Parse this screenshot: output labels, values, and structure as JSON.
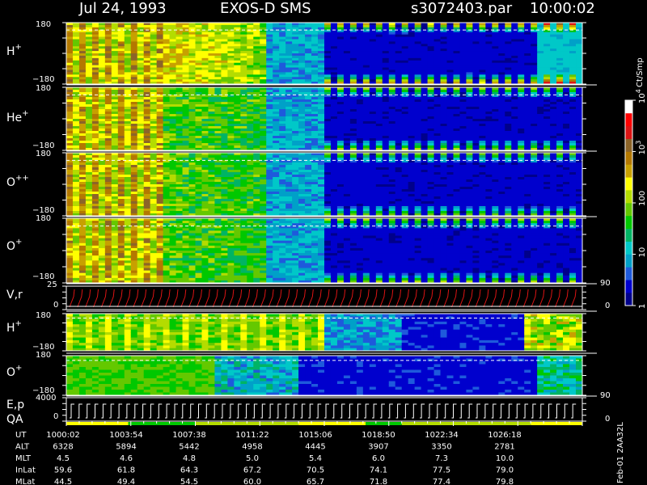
{
  "header": {
    "date": "Jul 24, 1993",
    "instrument": "EXOS-D SMS",
    "file": "s3072403.par",
    "time": "10:00:02"
  },
  "panels": {
    "p1": {
      "label": "H",
      "sup": "+",
      "ytop": "180",
      "ybot": "−180"
    },
    "p2": {
      "label": "He",
      "sup": "+",
      "ytop": "180",
      "ybot": "−180"
    },
    "p3": {
      "label": "O",
      "sup": "++",
      "ytop": "180",
      "ybot": "−180"
    },
    "p4": {
      "label": "O",
      "sup": "+",
      "ytop": "180",
      "ybot": "−180"
    },
    "p5": {
      "label": "V,r",
      "ytop": "25",
      "ybot": "0",
      "right_top": "90",
      "right_bot": "0"
    },
    "p6": {
      "label": "H",
      "sup": "+",
      "ytop": "180",
      "ybot": "−180"
    },
    "p7": {
      "label": "O",
      "sup": "+",
      "ytop": "180",
      "ybot": "−180"
    },
    "p8": {
      "label1": "E,p",
      "label2": "QA",
      "ytop": "4000",
      "ybot": "0",
      "right_top": "90",
      "right_bot": "0"
    }
  },
  "colorbar": {
    "unit": "Ct/Smp",
    "ticks": [
      {
        "base": "1",
        "exp": "",
        "frac": 0.0
      },
      {
        "base": "10",
        "exp": "",
        "frac": 0.25
      },
      {
        "base": "100",
        "exp": "",
        "frac": 0.5
      },
      {
        "base": "10",
        "exp": "3",
        "frac": 0.75
      },
      {
        "base": "10",
        "exp": "4",
        "frac": 1.0
      }
    ],
    "colors": [
      "#00008b",
      "#0000cd",
      "#1e5adc",
      "#00a0c8",
      "#00c8c8",
      "#00b464",
      "#00c800",
      "#64c800",
      "#b4dc00",
      "#ffff00",
      "#c8a000",
      "#b47800",
      "#8c6428",
      "#dc1414",
      "#ff0000",
      "#ffffff"
    ]
  },
  "footer": {
    "side_label": "Feb-01 2AA32L",
    "rows": [
      {
        "name": "UT",
        "values": [
          "1000:02",
          "1003:54",
          "1007:38",
          "1011:22",
          "1015:06",
          "1018:50",
          "1022:34",
          "1026:18"
        ]
      },
      {
        "name": "ALT",
        "values": [
          "6328",
          "5894",
          "5442",
          "4958",
          "4445",
          "3907",
          "3350",
          "2781"
        ]
      },
      {
        "name": "MLT",
        "values": [
          "4.5",
          "4.6",
          "4.8",
          "5.0",
          "5.4",
          "6.0",
          "7.3",
          "10.0"
        ]
      },
      {
        "name": "InLat",
        "values": [
          "59.6",
          "61.8",
          "64.3",
          "67.2",
          "70.5",
          "74.1",
          "77.5",
          "79.0"
        ]
      },
      {
        "name": "MLat",
        "values": [
          "44.5",
          "49.4",
          "54.5",
          "60.0",
          "65.7",
          "71.8",
          "77.4",
          "79.8"
        ]
      }
    ]
  },
  "chart_data": {
    "type": "heatmap",
    "title": "Jul 24, 1993   EXOS-D SMS",
    "x_ticks_ut": [
      "1000:02",
      "1003:54",
      "1007:38",
      "1011:22",
      "1015:06",
      "1018:50",
      "1022:34",
      "1026:18"
    ],
    "colorbar_range": [
      1,
      10000
    ],
    "colorbar_scale": "log",
    "colorbar_unit": "Ct/Smp",
    "panels": [
      {
        "species": "H+",
        "yrange": [
          -180,
          180
        ]
      },
      {
        "species": "He+",
        "yrange": [
          -180,
          180
        ]
      },
      {
        "species": "O++",
        "yrange": [
          -180,
          180
        ]
      },
      {
        "species": "O+",
        "yrange": [
          -180,
          180
        ]
      },
      {
        "quantity": "V,r",
        "yrange": [
          0,
          25
        ],
        "yrange_right": [
          0,
          90
        ]
      },
      {
        "species": "H+",
        "yrange": [
          -180,
          180
        ]
      },
      {
        "species": "O+",
        "yrange": [
          -180,
          180
        ]
      },
      {
        "quantity": "E,p / QA",
        "yrange": [
          0,
          4000
        ],
        "yrange_right": [
          0,
          90
        ]
      }
    ]
  }
}
